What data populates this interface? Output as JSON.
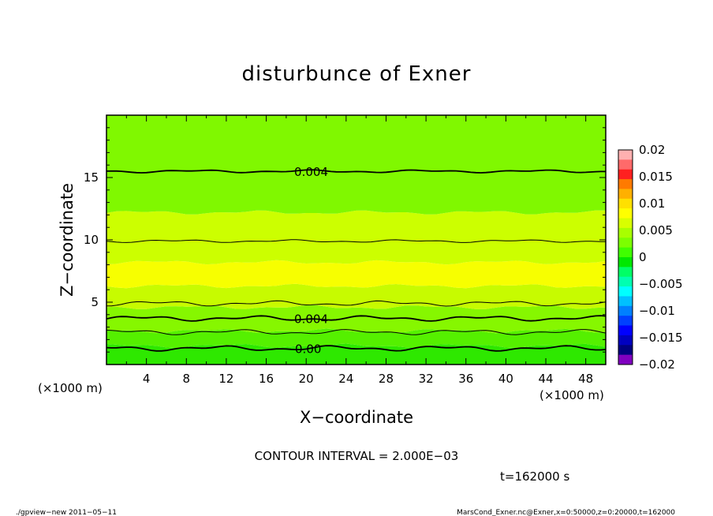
{
  "chart_data": {
    "type": "heatmap",
    "title": "disturbunce of Exner",
    "xlabel": "X−coordinate",
    "ylabel": "Z−coordinate",
    "x_unit_left": "(×1000 m)",
    "x_unit_right": "(×1000 m)",
    "xlim": [
      0,
      50
    ],
    "ylim": [
      0,
      20
    ],
    "x_ticks": [
      "4",
      "8",
      "12",
      "16",
      "20",
      "24",
      "28",
      "32",
      "36",
      "40",
      "44",
      "48"
    ],
    "y_ticks": [
      "5",
      "10",
      "15"
    ],
    "colorbar": {
      "labels": [
        "0.02",
        "0.015",
        "0.01",
        "0.005",
        "0",
        "−0.005",
        "−0.01",
        "−0.015",
        "−0.02"
      ],
      "levels": [
        0.02,
        0.015,
        0.01,
        0.005,
        0,
        -0.005,
        -0.01,
        -0.015,
        -0.02
      ],
      "colors": [
        "#ffb0b0",
        "#ff6a6a",
        "#ff2020",
        "#ff7a00",
        "#ffb000",
        "#ffe000",
        "#ffff00",
        "#d8ff00",
        "#a8ff00",
        "#7cff00",
        "#40ff00",
        "#00e800",
        "#00ff66",
        "#00ffb0",
        "#00ffff",
        "#00c0ff",
        "#0080ff",
        "#0040ff",
        "#0000ff",
        "#0000c0",
        "#000080",
        "#8000c0"
      ]
    },
    "bands": [
      {
        "z_bottom": 0,
        "z_top": 1.5,
        "color": "#2ee800"
      },
      {
        "z_bottom": 1.5,
        "z_top": 2.7,
        "color": "#55f000"
      },
      {
        "z_bottom": 2.7,
        "z_top": 4.6,
        "color": "#86f700"
      },
      {
        "z_bottom": 4.6,
        "z_top": 6.3,
        "color": "#c7fb00"
      },
      {
        "z_bottom": 6.3,
        "z_top": 8.2,
        "color": "#f7ff00"
      },
      {
        "z_bottom": 8.2,
        "z_top": 12.2,
        "color": "#ccff00"
      },
      {
        "z_bottom": 12.2,
        "z_top": 20,
        "color": "#80f800"
      }
    ],
    "contours": [
      {
        "z": 15.5,
        "width": 1.8,
        "label": "0.004",
        "label_x": 20.5
      },
      {
        "z": 9.9,
        "width": 1.0
      },
      {
        "z": 4.9,
        "width": 1.0
      },
      {
        "z": 3.7,
        "width": 1.8,
        "label": "0.004",
        "label_x": 20.5
      },
      {
        "z": 2.6,
        "width": 1.0
      },
      {
        "z": 1.3,
        "width": 1.8,
        "label": "0.00",
        "label_x": 20.2
      }
    ],
    "contour_interval_text": "CONTOUR INTERVAL = 2.000E−03",
    "time_text": "t=162000 s"
  },
  "footer": {
    "left": "./gpview−new  2011−05−11",
    "right": "MarsCond_Exner.nc@Exner,x=0:50000,z=0:20000,t=162000"
  }
}
